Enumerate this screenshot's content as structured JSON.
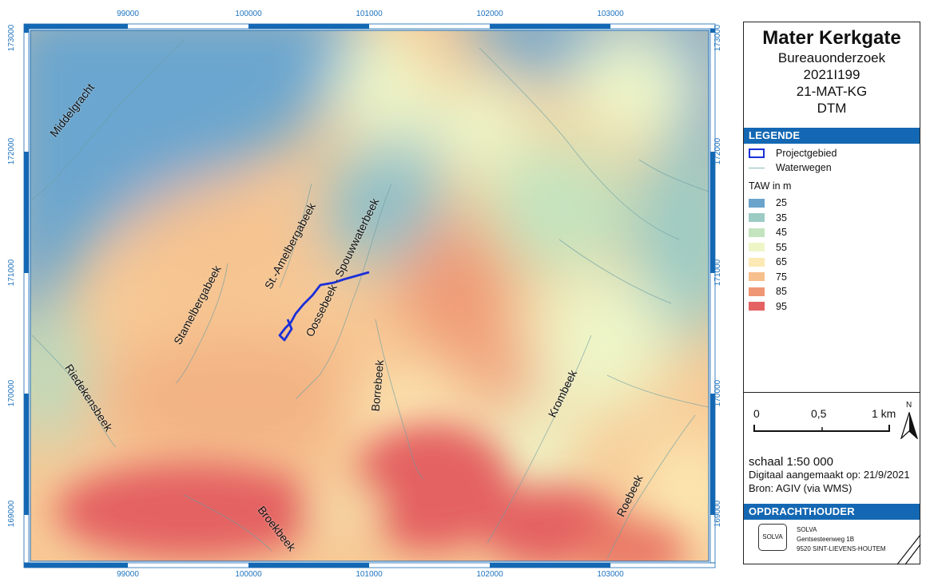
{
  "map": {
    "x_ticks": [
      "99000",
      "100000",
      "101000",
      "102000",
      "103000"
    ],
    "y_ticks": [
      "173000",
      "172000",
      "171000",
      "170000",
      "169000"
    ],
    "stream_labels": {
      "middelgracht": "Middelgracht",
      "amelbergabeek": "St.-Amelbergabeek",
      "spouwwaterbeek": "Oossebeek - Spouwwaterbeek",
      "stamelbergabeek": "Stamelbergabeek",
      "riedekensbeek": "Riedekensbeek",
      "borrebeek": "Borrebeek",
      "krombeek": "Krombeek",
      "roebeek": "Roebeek",
      "broekbeek": "Broekbeek"
    },
    "project_color": "#1a2fd8",
    "frame_color": "#1468b3"
  },
  "title": {
    "main": "Mater Kerkgate",
    "line1": "Bureauonderzoek",
    "line2": "2021I199",
    "line3": "21-MAT-KG",
    "line4": "DTM"
  },
  "legend": {
    "header": "LEGENDE",
    "project": "Projectgebied",
    "waterways": "Waterwegen",
    "taw_title": "TAW in m",
    "classes": [
      {
        "label": "25",
        "color": "#6aa3cc"
      },
      {
        "label": "35",
        "color": "#9ccbc4"
      },
      {
        "label": "45",
        "color": "#c3e4bf"
      },
      {
        "label": "55",
        "color": "#eef6c8"
      },
      {
        "label": "65",
        "color": "#fce9b4"
      },
      {
        "label": "75",
        "color": "#f6bf8c"
      },
      {
        "label": "85",
        "color": "#ef9774"
      },
      {
        "label": "95",
        "color": "#e46262"
      }
    ]
  },
  "scale": {
    "label0": "0",
    "label_mid": "0,5",
    "label_end": "1 km",
    "north": "N",
    "schaal": "schaal 1:50 000",
    "digitaal": "Digitaal aangemaakt op: 21/9/2021",
    "bron": "Bron: AGIV (via WMS)"
  },
  "client": {
    "header": "OPDRACHTHOUDER",
    "logo": "SOLVA",
    "name": "SOLVA",
    "street": "Gentsesteenweg 1B",
    "city": "9520 SINT-LIEVENS-HOUTEM"
  }
}
